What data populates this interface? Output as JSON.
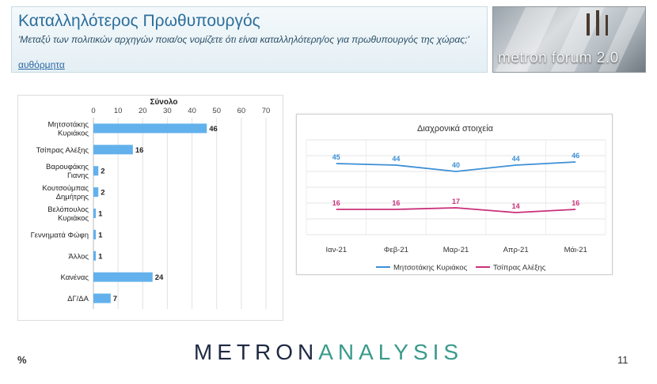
{
  "header": {
    "title": "Καταλληλότερος Πρωθυπουργός",
    "subtitle": "'Μεταξύ των πολιτικών αρχηγών ποια/ος νομίζετε ότι είναι καταλληλότερη/ος για πρωθυπουργός της χώρας;'",
    "note": "αυθόρμητα"
  },
  "logo": {
    "text": "metron forum 2.0"
  },
  "footer": {
    "unit": "%",
    "brand_main": "METRON",
    "brand_accent": "ANALYSIS",
    "page_number": "11"
  },
  "colors": {
    "bar": "#62b1ec",
    "series_1": "#3d8fd6",
    "series_2": "#c9307a",
    "title": "#2d6f9c"
  },
  "chart_data": [
    {
      "type": "bar",
      "orientation": "horizontal",
      "title": "Σύνολο",
      "categories": [
        [
          "Μητσοτάκης",
          "Κυριάκος"
        ],
        [
          "Τσίπρας Αλέξης"
        ],
        [
          "Βαρουφάκης",
          "Γιανης"
        ],
        [
          "Κουτσούμπας",
          "Δημήτρης"
        ],
        [
          "Βελόπουλος",
          "Κυριάκος"
        ],
        [
          "Γεννηματά Φώφη"
        ],
        [
          "Άλλος"
        ],
        [
          "Κανένας"
        ],
        [
          "ΔΓ/ΔΑ"
        ]
      ],
      "values": [
        46,
        16,
        2,
        2,
        1,
        1,
        1,
        24,
        7
      ],
      "xlim": [
        0,
        70
      ],
      "xticks": [
        0,
        10,
        20,
        30,
        40,
        50,
        60,
        70
      ],
      "grid": true,
      "data_labels": true
    },
    {
      "type": "line",
      "title": "Διαχρονικά στοιχεία",
      "categories": [
        "Ιαν-21",
        "Φεβ-21",
        "Μαρ-21",
        "Απρ-21",
        "Μάι-21"
      ],
      "series": [
        {
          "name": "Μητσοτάκης Κυριάκος",
          "values": [
            45,
            44,
            40,
            44,
            46
          ]
        },
        {
          "name": "Τσίπρας Αλέξης",
          "values": [
            16,
            16,
            17,
            14,
            16
          ]
        }
      ],
      "ylim": [
        0,
        60
      ],
      "grid": true,
      "data_labels": true,
      "legend": "bottom"
    }
  ]
}
